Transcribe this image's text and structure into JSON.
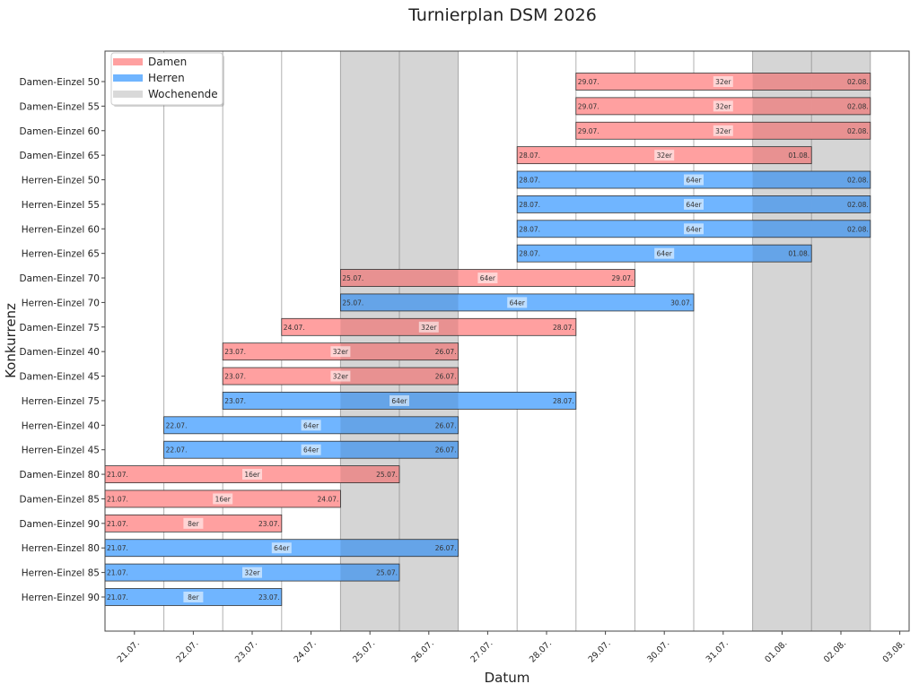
{
  "chart_data": {
    "type": "gantt",
    "title": "Turnierplan DSM 2026",
    "xlabel": "Datum",
    "ylabel": "Konkurrenz",
    "x_ticks": [
      "21.07.",
      "22.07.",
      "23.07.",
      "24.07.",
      "25.07.",
      "26.07.",
      "27.07.",
      "28.07.",
      "29.07.",
      "30.07.",
      "31.07.",
      "01.08.",
      "02.08.",
      "03.08."
    ],
    "weekend_days": [
      "25.07.",
      "26.07.",
      "01.08.",
      "02.08."
    ],
    "grid": true,
    "legend_position": "top-left",
    "legend": [
      {
        "label": "Damen",
        "color": "#ffa0a0"
      },
      {
        "label": "Herren",
        "color": "#70b5ff"
      },
      {
        "label": "Wochenende",
        "color": "#d9d9d9"
      }
    ],
    "colors": {
      "Damen": "#ffa0a0",
      "Herren": "#70b5ff",
      "weekend": "#000000",
      "edge": "#333333"
    },
    "bars": [
      {
        "name": "Damen-Einzel 50",
        "group": "Damen",
        "start": "29.07.",
        "end": "02.08.",
        "draw": "32er"
      },
      {
        "name": "Damen-Einzel 55",
        "group": "Damen",
        "start": "29.07.",
        "end": "02.08.",
        "draw": "32er"
      },
      {
        "name": "Damen-Einzel 60",
        "group": "Damen",
        "start": "29.07.",
        "end": "02.08.",
        "draw": "32er"
      },
      {
        "name": "Damen-Einzel 65",
        "group": "Damen",
        "start": "28.07.",
        "end": "01.08.",
        "draw": "32er"
      },
      {
        "name": "Herren-Einzel 50",
        "group": "Herren",
        "start": "28.07.",
        "end": "02.08.",
        "draw": "64er"
      },
      {
        "name": "Herren-Einzel 55",
        "group": "Herren",
        "start": "28.07.",
        "end": "02.08.",
        "draw": "64er"
      },
      {
        "name": "Herren-Einzel 60",
        "group": "Herren",
        "start": "28.07.",
        "end": "02.08.",
        "draw": "64er"
      },
      {
        "name": "Herren-Einzel 65",
        "group": "Herren",
        "start": "28.07.",
        "end": "01.08.",
        "draw": "64er"
      },
      {
        "name": "Damen-Einzel 70",
        "group": "Damen",
        "start": "25.07.",
        "end": "29.07.",
        "draw": "64er"
      },
      {
        "name": "Herren-Einzel 70",
        "group": "Herren",
        "start": "25.07.",
        "end": "30.07.",
        "draw": "64er"
      },
      {
        "name": "Damen-Einzel 75",
        "group": "Damen",
        "start": "24.07.",
        "end": "28.07.",
        "draw": "32er"
      },
      {
        "name": "Damen-Einzel 40",
        "group": "Damen",
        "start": "23.07.",
        "end": "26.07.",
        "draw": "32er"
      },
      {
        "name": "Damen-Einzel 45",
        "group": "Damen",
        "start": "23.07.",
        "end": "26.07.",
        "draw": "32er"
      },
      {
        "name": "Herren-Einzel 75",
        "group": "Herren",
        "start": "23.07.",
        "end": "28.07.",
        "draw": "64er"
      },
      {
        "name": "Herren-Einzel 40",
        "group": "Herren",
        "start": "22.07.",
        "end": "26.07.",
        "draw": "64er"
      },
      {
        "name": "Herren-Einzel 45",
        "group": "Herren",
        "start": "22.07.",
        "end": "26.07.",
        "draw": "64er"
      },
      {
        "name": "Damen-Einzel 80",
        "group": "Damen",
        "start": "21.07.",
        "end": "25.07.",
        "draw": "16er"
      },
      {
        "name": "Damen-Einzel 85",
        "group": "Damen",
        "start": "21.07.",
        "end": "24.07.",
        "draw": "16er"
      },
      {
        "name": "Damen-Einzel 90",
        "group": "Damen",
        "start": "21.07.",
        "end": "23.07.",
        "draw": "8er"
      },
      {
        "name": "Herren-Einzel 80",
        "group": "Herren",
        "start": "21.07.",
        "end": "26.07.",
        "draw": "64er"
      },
      {
        "name": "Herren-Einzel 85",
        "group": "Herren",
        "start": "21.07.",
        "end": "25.07.",
        "draw": "32er"
      },
      {
        "name": "Herren-Einzel 90",
        "group": "Herren",
        "start": "21.07.",
        "end": "23.07.",
        "draw": "8er"
      }
    ]
  }
}
